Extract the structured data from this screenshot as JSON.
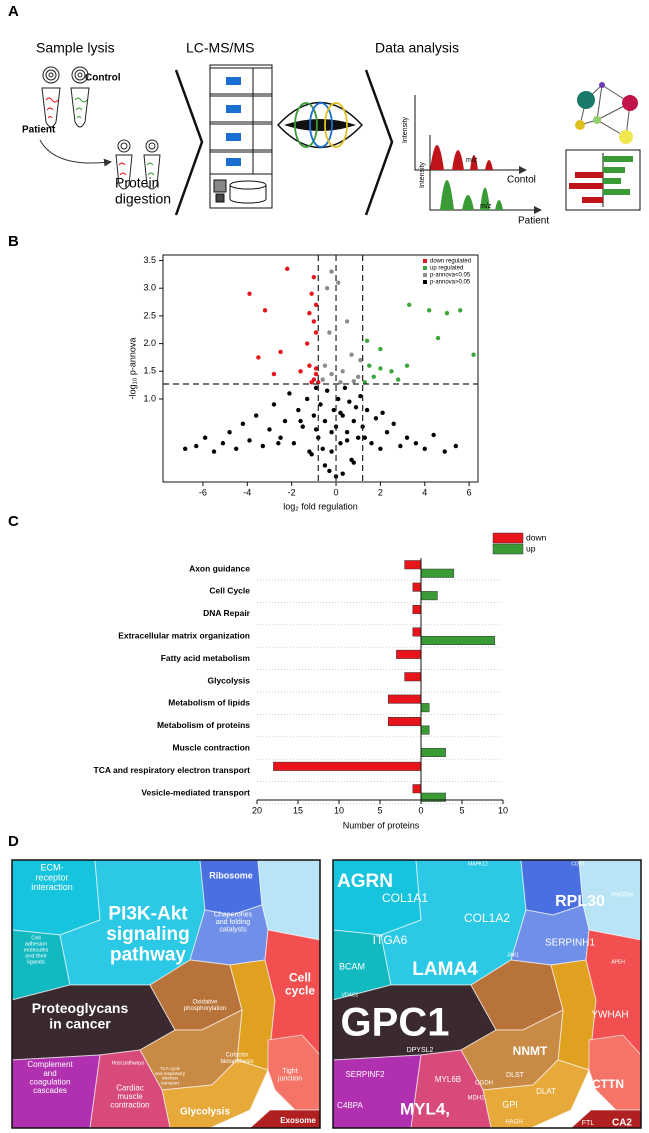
{
  "panel_labels": [
    "A",
    "B",
    "C",
    "D"
  ],
  "workflow": {
    "steps": [
      "Sample lysis",
      "LC-MS/MS",
      "Data analysis"
    ],
    "control": "Control",
    "patient": "Patient",
    "digestion": [
      "Protein",
      "digestion"
    ],
    "spectra": {
      "intensity_top": "Intensity",
      "mz_top": "m/z",
      "top_label": "Contol",
      "intensity_bottom": "Intensity",
      "mz_bottom": "m/z",
      "bottom_label": "Patient"
    }
  },
  "chart_data": [
    {
      "type": "scatter",
      "xlabel": "log₂ fold regulation",
      "ylabel": "-log₁₀ p-annova",
      "xlim": [
        -7.8,
        6.4
      ],
      "ylim": [
        -0.5,
        3.6
      ],
      "xticks": [
        -6,
        -4,
        -2,
        0,
        2,
        4,
        6
      ],
      "yticks": [
        {
          "value": 1,
          "label": "1.0"
        },
        1.5,
        {
          "value": 2,
          "label": "2.0"
        },
        2.5,
        {
          "value": 3,
          "label": "3.0"
        },
        3.5
      ],
      "vlines": [
        -0.8,
        0,
        1.2
      ],
      "hlines": [
        1.27
      ],
      "legend": "upper right",
      "series": [
        {
          "name": "down regulated",
          "color": "#e8141b",
          "x": [
            -2.2,
            -3.9,
            -3.2,
            -1.0,
            -1.1,
            -0.9,
            -1.2,
            -1.0,
            -0.9,
            -1.3,
            -2.5,
            -3.5,
            -1.6,
            -1.2,
            -0.9,
            -1.0,
            -0.8,
            -1.1,
            -2.8,
            -0.9
          ],
          "values": [
            3.35,
            2.9,
            2.6,
            3.2,
            2.9,
            2.7,
            2.55,
            2.4,
            2.2,
            2.0,
            1.85,
            1.75,
            1.5,
            1.6,
            1.45,
            1.35,
            1.3,
            1.3,
            1.45,
            1.55
          ]
        },
        {
          "name": "up regulated",
          "color": "#3aa83a",
          "x": [
            3.3,
            4.2,
            5.0,
            5.6,
            6.2,
            4.6,
            2.0,
            1.4,
            1.5,
            2.0,
            1.7,
            2.5,
            2.8,
            1.3,
            3.2
          ],
          "values": [
            2.7,
            2.6,
            2.55,
            2.6,
            1.8,
            2.1,
            1.9,
            2.05,
            1.6,
            1.55,
            1.4,
            1.5,
            1.35,
            1.3,
            1.6
          ]
        },
        {
          "name": "p-annova<0.05",
          "color": "#8c8c8c",
          "x": [
            -0.2,
            0.1,
            -0.4,
            0.5,
            -0.3,
            0.7,
            1.1,
            -0.5,
            0.3,
            1.0,
            -0.6,
            0.2,
            -0.2,
            0.8
          ],
          "values": [
            3.3,
            3.1,
            3.0,
            2.4,
            2.2,
            1.8,
            1.7,
            1.6,
            1.5,
            1.4,
            1.35,
            1.3,
            1.45,
            1.32
          ]
        },
        {
          "name": "p-annova>0.05",
          "color": "#000000",
          "x": [
            -6.8,
            -6.3,
            -5.9,
            -5.5,
            -5.1,
            -4.8,
            -4.5,
            -4.2,
            -3.9,
            -3.6,
            -3.3,
            -3.0,
            -2.8,
            -2.5,
            -2.3,
            -2.1,
            -1.9,
            -1.7,
            -1.5,
            -1.3,
            -1.2,
            -1.0,
            -0.9,
            -0.8,
            -0.7,
            -0.6,
            -0.5,
            -0.4,
            -0.3,
            -0.2,
            -0.1,
            0,
            0.1,
            0.2,
            0.3,
            0.4,
            0.5,
            0.6,
            0.7,
            0.8,
            0.9,
            1.0,
            1.1,
            1.2,
            1.4,
            1.6,
            1.8,
            2.0,
            2.3,
            2.6,
            2.9,
            3.2,
            3.6,
            4.0,
            4.4,
            4.9,
            5.4,
            -0.5,
            0.3,
            -1.1,
            0.8,
            -0.2,
            0.5,
            -0.9,
            1.3,
            -1.6,
            2.1,
            -2.6,
            0,
            0.2
          ],
          "values": [
            0.1,
            0.15,
            0.3,
            0.05,
            0.2,
            0.4,
            0.1,
            0.55,
            0.25,
            0.7,
            0.15,
            0.45,
            0.9,
            0.3,
            0.6,
            1.1,
            0.2,
            0.8,
            0.5,
            1.0,
            0.05,
            0.7,
            1.2,
            0.3,
            0.9,
            0.1,
            0.6,
            1.15,
            -0.3,
            0.4,
            0.8,
            -0.4,
            1.0,
            0.2,
            0.7,
            1.2,
            0.4,
            0.95,
            -0.1,
            0.6,
            0.85,
            0.3,
            1.05,
            0.5,
            0.8,
            0.2,
            0.65,
            0.1,
            0.4,
            0.55,
            0.15,
            0.3,
            0.2,
            0.1,
            0.35,
            0.05,
            0.15,
            -0.2,
            -0.35,
            0.0,
            -0.15,
            0.05,
            0.25,
            0.45,
            0.3,
            0.6,
            0.75,
            0.2,
            0.5,
            0.75
          ]
        }
      ]
    },
    {
      "type": "bar",
      "orientation": "horizontal",
      "xlabel": "Number of proteins",
      "categories": [
        "Axon guidance",
        "Cell Cycle",
        "DNA Repair",
        "Extracellular matrix organization",
        "Fatty acid metabolism",
        "Glycolysis",
        "Metabolism of lipids",
        "Metabolism of proteins",
        "Muscle contraction",
        "TCA and respiratory electron transport",
        "Vesicle-mediated transport"
      ],
      "xlim": [
        -20,
        10
      ],
      "xticks": [
        {
          "value": -20,
          "label": "20"
        },
        {
          "value": -15,
          "label": "15"
        },
        {
          "value": -10,
          "label": "10"
        },
        {
          "value": -5,
          "label": "5"
        },
        0,
        5,
        10
      ],
      "legend": "upper right",
      "series": [
        {
          "name": "down",
          "color": "#e8141b",
          "values": [
            -2,
            -1,
            -1,
            -1,
            -3,
            -2,
            -4,
            -4,
            0,
            -18,
            -1
          ]
        },
        {
          "name": "up",
          "color": "#3a9a35",
          "values": [
            4,
            2,
            0,
            9,
            0,
            0,
            1,
            1,
            3,
            0,
            3
          ]
        }
      ]
    }
  ],
  "treemaps": [
    {
      "cells": [
        {
          "lines": [
            "ECM-",
            "receptor",
            "interaction"
          ]
        },
        {
          "lines": [
            "Cell",
            "adhesion",
            "molecules",
            "and their",
            "ligands"
          ]
        },
        {
          "lines": [
            "PI3K-Akt",
            "signaling",
            "pathway"
          ]
        },
        {
          "lines": [
            "Ribosome"
          ]
        },
        {
          "lines": [
            "Chaperones",
            "and folding",
            "catalysts"
          ]
        },
        {
          "lines": [
            "Proteoglycans",
            "in cancer"
          ]
        },
        {
          "lines": [
            "Oxidative",
            "phosphorylation"
          ]
        },
        {
          "lines": [
            "Cofactor",
            "biosynthesis"
          ]
        },
        {
          "lines": [
            "Cell",
            "cycle"
          ]
        },
        {
          "lines": [
            "Tight",
            "junction"
          ]
        },
        {
          "lines": [
            "Complement",
            "and",
            "coagulation",
            "cascades"
          ]
        },
        {
          "lines": [
            "Cardiac",
            "muscle",
            "contraction"
          ]
        },
        {
          "lines": [
            "Glycolysis"
          ]
        },
        {
          "lines": [
            "TCA cycle",
            "and respiratory",
            "electron",
            "transport"
          ]
        },
        {
          "lines": [
            "Exosome"
          ]
        },
        {
          "lines": [
            "Host pathways"
          ]
        }
      ]
    },
    {
      "cells": [
        {
          "lines": [
            "AGRN"
          ]
        },
        {
          "lines": [
            "COL1A1"
          ]
        },
        {
          "lines": [
            "COL1A2"
          ]
        },
        {
          "lines": [
            "ITGA6"
          ]
        },
        {
          "lines": [
            "BCAM"
          ]
        },
        {
          "lines": [
            "VDAC1"
          ]
        },
        {
          "lines": [
            "LAMA4"
          ]
        },
        {
          "lines": [
            "RPL30"
          ]
        },
        {
          "lines": [
            "SERPINH1"
          ]
        },
        {
          "lines": [
            "GPC1"
          ]
        },
        {
          "lines": [
            "NNMT"
          ]
        },
        {
          "lines": [
            "YWHAH"
          ]
        },
        {
          "lines": [
            "CTTN"
          ]
        },
        {
          "lines": [
            "SERPINF2"
          ]
        },
        {
          "lines": [
            "MYL6B"
          ]
        },
        {
          "lines": [
            "MYL4,"
          ]
        },
        {
          "lines": [
            "C4BPA"
          ]
        },
        {
          "lines": [
            "DPYSL2"
          ]
        },
        {
          "lines": [
            "GPI"
          ]
        },
        {
          "lines": [
            "DLAT"
          ]
        },
        {
          "lines": [
            "DLST"
          ]
        },
        {
          "lines": [
            "OGDH"
          ]
        },
        {
          "lines": [
            "MDH1"
          ]
        },
        {
          "lines": [
            "HAGH"
          ]
        },
        {
          "lines": [
            "FTL"
          ]
        },
        {
          "lines": [
            "CA2"
          ]
        },
        {
          "lines": [
            "MAPK12"
          ]
        },
        {
          "lines": [
            "COX1"
          ]
        },
        {
          "lines": [
            "JAK1"
          ]
        },
        {
          "lines": [
            "APEH"
          ]
        },
        {
          "lines": [
            "PHGDH"
          ]
        }
      ]
    }
  ]
}
